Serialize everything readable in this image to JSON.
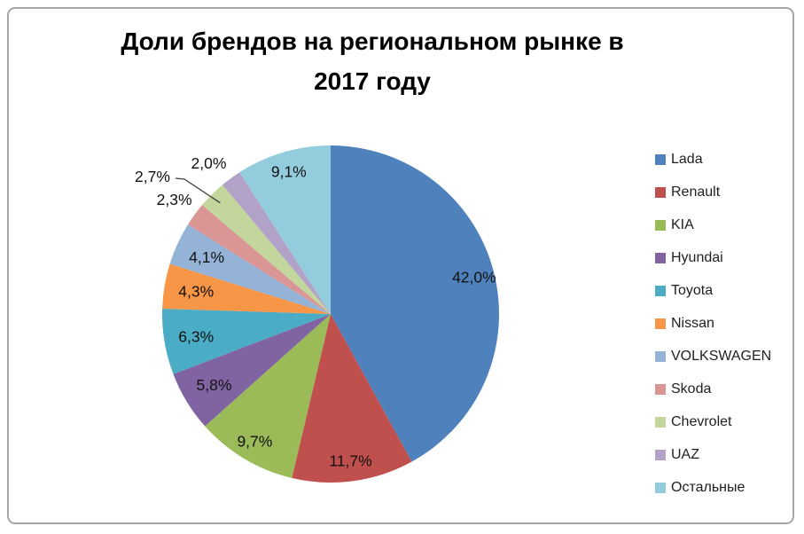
{
  "title": {
    "text": "Доли брендов на региональном рынке в 2017 году",
    "lines": [
      "Доли брендов на региональном рынке в",
      "2017 году"
    ]
  },
  "chart_data": {
    "type": "pie",
    "title": "Доли брендов на региональном рынке в 2017 году",
    "categories": [
      "Lada",
      "Renault",
      "KIA",
      "Hyundai",
      "Toyota",
      "Nissan",
      "VOLKSWAGEN",
      "Skoda",
      "Chevrolet",
      "UAZ",
      "Остальные"
    ],
    "values": [
      42.0,
      11.7,
      9.7,
      5.8,
      6.3,
      4.3,
      4.1,
      2.3,
      2.7,
      2.0,
      9.1
    ],
    "percent_labels": [
      "42,0%",
      "11,7%",
      "9,7%",
      "5,8%",
      "6,3%",
      "4,3%",
      "4,1%",
      "2,3%",
      "2,7%",
      "2,0%",
      "9,1%"
    ],
    "colors": [
      "#4F81BD",
      "#C0504D",
      "#9BBB59",
      "#8064A2",
      "#4BACC6",
      "#F79646",
      "#95B3D7",
      "#D99694",
      "#C3D69B",
      "#B3A2C7",
      "#93CDDD"
    ],
    "total": 100.0,
    "start_angle_deg": 0,
    "direction": "clockwise",
    "legend_position": "right",
    "label_decimal_separator": ","
  }
}
